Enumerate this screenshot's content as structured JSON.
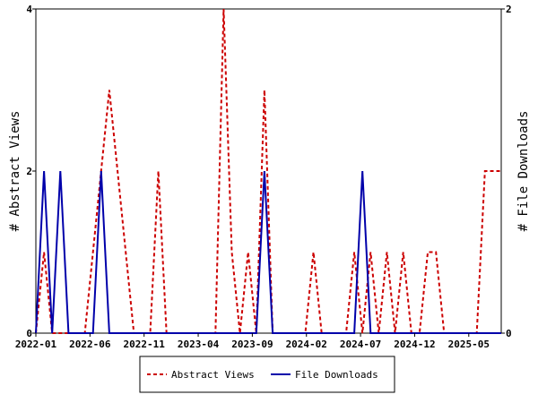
{
  "chart_data": {
    "type": "line",
    "title": "",
    "x_tick_labels": [
      "2022-01",
      "2022-06",
      "2022-11",
      "2023-04",
      "2023-09",
      "2024-02",
      "2024-07",
      "2024-12",
      "2025-05"
    ],
    "y_left": {
      "label": "# Abstract Views",
      "ylim": [
        0,
        4
      ],
      "ticks": [
        "0",
        "2",
        "4"
      ]
    },
    "y_right": {
      "label": "# File Downloads",
      "ylim": [
        0,
        2
      ],
      "ticks": [
        "0",
        "2"
      ]
    },
    "x_range_months": [
      0,
      43
    ],
    "legend_placement": "bottom",
    "series": [
      {
        "name": "Abstract Views",
        "axis": "left",
        "color": "#cc0000",
        "style": "dashed",
        "values": [
          0,
          1,
          0,
          0,
          0,
          0,
          0,
          1,
          2,
          3,
          2,
          1,
          0,
          0,
          0,
          2,
          0,
          0,
          0,
          0,
          0,
          0,
          0,
          4,
          1,
          0,
          1,
          0,
          3,
          0,
          0,
          0,
          0,
          0,
          1,
          0,
          0,
          0,
          0,
          1,
          0,
          1,
          0,
          1,
          0,
          1,
          0,
          0,
          1,
          1,
          0,
          0,
          0,
          0,
          0,
          2,
          2,
          2
        ]
      },
      {
        "name": "File Downloads",
        "axis": "right",
        "color": "#0000aa",
        "style": "solid",
        "values": [
          0,
          1,
          0,
          1,
          0,
          0,
          0,
          0,
          1,
          0,
          0,
          0,
          0,
          0,
          0,
          0,
          0,
          0,
          0,
          0,
          0,
          0,
          0,
          0,
          0,
          0,
          0,
          0,
          1,
          0,
          0,
          0,
          0,
          0,
          0,
          0,
          0,
          0,
          0,
          0,
          1,
          0,
          0,
          0,
          0,
          0,
          0,
          0,
          0,
          0,
          0,
          0,
          0,
          0,
          0,
          0,
          0,
          0
        ]
      }
    ]
  }
}
